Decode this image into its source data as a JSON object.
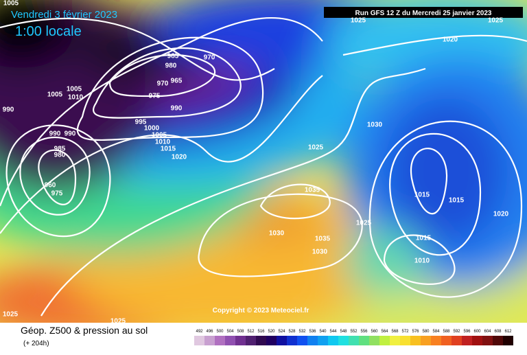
{
  "header": {
    "title": "Vendredi 3 février 2023",
    "time": "1:00 locale",
    "run": "Run GFS 12 Z du Mercredi 25 janvier 2023"
  },
  "isobar_labels": [
    "1005",
    "990",
    "1005",
    "1005",
    "1010",
    "985",
    "980",
    "970",
    "965",
    "970",
    "975",
    "990",
    "995",
    "1000",
    "1005",
    "1010",
    "1015",
    "1020",
    "990",
    "990",
    "985",
    "980",
    "960",
    "975",
    "1025",
    "1025",
    "1020",
    "1030",
    "1025",
    "1035",
    "1030",
    "1035",
    "1030",
    "1025",
    "1015",
    "1015",
    "1020",
    "1015",
    "1010",
    "1025",
    "1025"
  ],
  "copyright": "Copyright © 2023 Meteociel.fr",
  "footer": {
    "title": "Géop. Z500 & pression au sol",
    "lead": "(+ 204h)"
  },
  "color_scale": {
    "ticks": [
      492,
      496,
      500,
      504,
      508,
      512,
      516,
      520,
      524,
      528,
      532,
      536,
      540,
      544,
      548,
      552,
      556,
      560,
      564,
      568,
      572,
      576,
      580,
      584,
      588,
      592,
      596,
      600,
      604,
      608,
      612
    ],
    "colors": [
      "#e0c8e0",
      "#c8a0d0",
      "#b070c0",
      "#9050b0",
      "#703090",
      "#502070",
      "#300a50",
      "#200060",
      "#1010a0",
      "#1030d0",
      "#1050f0",
      "#1080f0",
      "#10a0f0",
      "#10c8f0",
      "#20e0e0",
      "#40e0b0",
      "#60e080",
      "#90e060",
      "#c0f040",
      "#f0f040",
      "#f8e030",
      "#f8c020",
      "#f8a020",
      "#f88020",
      "#f06020",
      "#e04020",
      "#c02020",
      "#a01010",
      "#801010",
      "#500808",
      "#200000"
    ]
  }
}
